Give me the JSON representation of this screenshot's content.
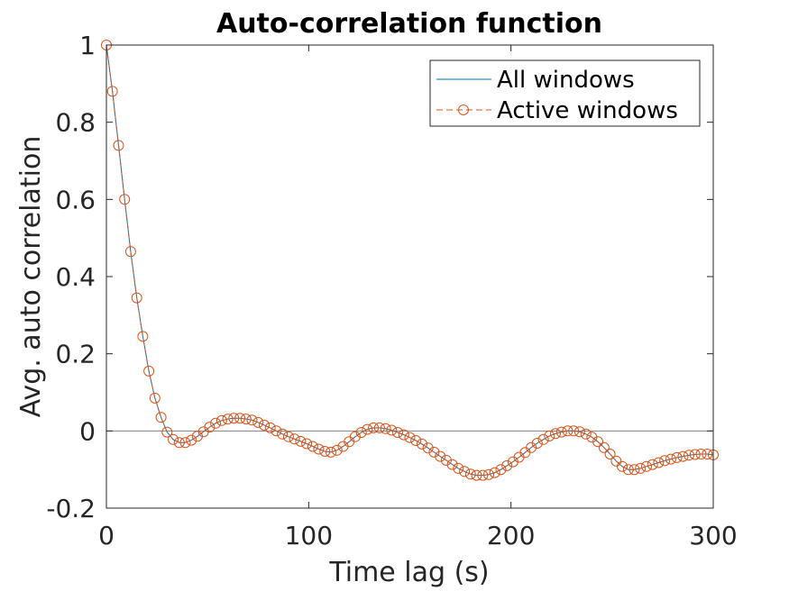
{
  "chart_data": {
    "type": "line",
    "title": "Auto-correlation function",
    "xlabel": "Time lag (s)",
    "ylabel": "Avg. auto correlation",
    "xlim": [
      0,
      300
    ],
    "ylim": [
      -0.2,
      1
    ],
    "xticks": [
      0,
      100,
      200,
      300
    ],
    "xtick_labels": [
      "0",
      "100",
      "200",
      "300"
    ],
    "yticks": [
      -0.2,
      0,
      0.2,
      0.4,
      0.6,
      0.8,
      1
    ],
    "ytick_labels": [
      "-0.2",
      "0",
      "0.2",
      "0.4",
      "0.6",
      "0.8",
      "1"
    ],
    "grid": false,
    "legend_position": "top-right",
    "zero_line": true,
    "colors": {
      "all_windows": "#0072BD",
      "active_windows": "#D95319",
      "zero_line": "#808080",
      "axes": "#262626"
    },
    "series": [
      {
        "name": "All windows",
        "style": "solid",
        "x": [
          0,
          3,
          6,
          9,
          12,
          15,
          18,
          21,
          24,
          27,
          30,
          33,
          36,
          39,
          42,
          45,
          48,
          51,
          54,
          57,
          60,
          63,
          66,
          69,
          72,
          75,
          78,
          81,
          84,
          87,
          90,
          93,
          96,
          99,
          102,
          105,
          108,
          111,
          114,
          117,
          120,
          123,
          126,
          129,
          132,
          135,
          138,
          141,
          144,
          147,
          150,
          153,
          156,
          159,
          162,
          165,
          168,
          171,
          174,
          177,
          180,
          183,
          186,
          189,
          192,
          195,
          198,
          201,
          204,
          207,
          210,
          213,
          216,
          219,
          222,
          225,
          228,
          231,
          234,
          237,
          240,
          243,
          246,
          249,
          252,
          255,
          258,
          261,
          264,
          267,
          270,
          273,
          276,
          279,
          282,
          285,
          288,
          291,
          294,
          297,
          300
        ],
        "values": [
          1.0,
          0.88,
          0.74,
          0.6,
          0.465,
          0.345,
          0.245,
          0.155,
          0.085,
          0.035,
          -0.003,
          -0.022,
          -0.03,
          -0.03,
          -0.024,
          -0.014,
          -0.002,
          0.01,
          0.02,
          0.027,
          0.031,
          0.033,
          0.033,
          0.031,
          0.028,
          0.022,
          0.015,
          0.008,
          0.0,
          -0.008,
          -0.015,
          -0.021,
          -0.027,
          -0.033,
          -0.04,
          -0.047,
          -0.053,
          -0.055,
          -0.05,
          -0.04,
          -0.028,
          -0.015,
          -0.004,
          0.004,
          0.008,
          0.008,
          0.006,
          0.002,
          -0.004,
          -0.01,
          -0.017,
          -0.025,
          -0.034,
          -0.044,
          -0.055,
          -0.066,
          -0.076,
          -0.087,
          -0.097,
          -0.105,
          -0.112,
          -0.115,
          -0.115,
          -0.113,
          -0.108,
          -0.1,
          -0.09,
          -0.08,
          -0.068,
          -0.056,
          -0.043,
          -0.032,
          -0.022,
          -0.013,
          -0.007,
          -0.003,
          0.0,
          0.0,
          -0.002,
          -0.008,
          -0.016,
          -0.028,
          -0.043,
          -0.06,
          -0.078,
          -0.092,
          -0.1,
          -0.1,
          -0.097,
          -0.092,
          -0.087,
          -0.082,
          -0.077,
          -0.073,
          -0.069,
          -0.066,
          -0.063,
          -0.061,
          -0.06,
          -0.06,
          -0.062
        ]
      },
      {
        "name": "Active windows",
        "style": "dashed",
        "marker": "circle",
        "x": [
          0,
          3,
          6,
          9,
          12,
          15,
          18,
          21,
          24,
          27,
          30,
          33,
          36,
          39,
          42,
          45,
          48,
          51,
          54,
          57,
          60,
          63,
          66,
          69,
          72,
          75,
          78,
          81,
          84,
          87,
          90,
          93,
          96,
          99,
          102,
          105,
          108,
          111,
          114,
          117,
          120,
          123,
          126,
          129,
          132,
          135,
          138,
          141,
          144,
          147,
          150,
          153,
          156,
          159,
          162,
          165,
          168,
          171,
          174,
          177,
          180,
          183,
          186,
          189,
          192,
          195,
          198,
          201,
          204,
          207,
          210,
          213,
          216,
          219,
          222,
          225,
          228,
          231,
          234,
          237,
          240,
          243,
          246,
          249,
          252,
          255,
          258,
          261,
          264,
          267,
          270,
          273,
          276,
          279,
          282,
          285,
          288,
          291,
          294,
          297,
          300
        ],
        "values": [
          1.0,
          0.88,
          0.74,
          0.6,
          0.465,
          0.345,
          0.245,
          0.155,
          0.085,
          0.035,
          -0.003,
          -0.022,
          -0.03,
          -0.03,
          -0.024,
          -0.014,
          -0.002,
          0.01,
          0.02,
          0.027,
          0.031,
          0.033,
          0.033,
          0.031,
          0.028,
          0.022,
          0.015,
          0.008,
          0.0,
          -0.008,
          -0.015,
          -0.021,
          -0.027,
          -0.033,
          -0.04,
          -0.047,
          -0.053,
          -0.055,
          -0.05,
          -0.04,
          -0.028,
          -0.015,
          -0.004,
          0.004,
          0.008,
          0.008,
          0.006,
          0.002,
          -0.004,
          -0.01,
          -0.017,
          -0.025,
          -0.034,
          -0.044,
          -0.055,
          -0.066,
          -0.076,
          -0.087,
          -0.097,
          -0.105,
          -0.112,
          -0.115,
          -0.115,
          -0.113,
          -0.108,
          -0.1,
          -0.09,
          -0.08,
          -0.068,
          -0.056,
          -0.043,
          -0.032,
          -0.022,
          -0.013,
          -0.007,
          -0.003,
          0.0,
          0.0,
          -0.002,
          -0.008,
          -0.016,
          -0.028,
          -0.043,
          -0.06,
          -0.078,
          -0.092,
          -0.1,
          -0.1,
          -0.097,
          -0.092,
          -0.087,
          -0.082,
          -0.077,
          -0.073,
          -0.069,
          -0.066,
          -0.063,
          -0.061,
          -0.06,
          -0.06,
          -0.062
        ]
      }
    ]
  }
}
